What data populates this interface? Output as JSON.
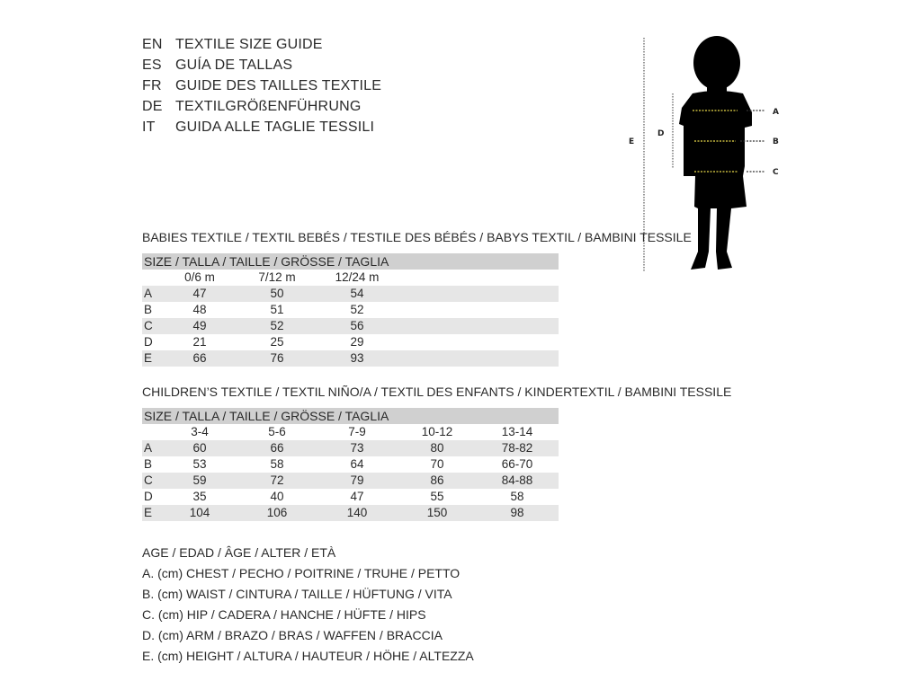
{
  "languages": [
    {
      "code": "EN",
      "title": "TEXTILE SIZE GUIDE"
    },
    {
      "code": "ES",
      "title": "GUÍA DE TALLAS"
    },
    {
      "code": "FR",
      "title": "GUIDE DES TAILLES TEXTILE"
    },
    {
      "code": "DE",
      "title": "TEXTILGRÖßENFÜHRUNG"
    },
    {
      "code": "IT",
      "title": "GUIDA ALLE TAGLIE TESSILI"
    }
  ],
  "babies": {
    "title": "BABIES TEXTILE / TEXTIL BEBÉS / TESTILE DES BÉBÉS / BABYS TEXTIL / BAMBINI TESSILE",
    "header": "SIZE / TALLA / TAILLE / GRÖSSE / TAGLIA",
    "columns": [
      "0/6 m",
      "7/12 m",
      "12/24 m"
    ],
    "rows": [
      {
        "label": "A",
        "values": [
          "47",
          "50",
          "54"
        ]
      },
      {
        "label": "B",
        "values": [
          "48",
          "51",
          "52"
        ]
      },
      {
        "label": "C",
        "values": [
          "49",
          "52",
          "56"
        ]
      },
      {
        "label": "D",
        "values": [
          "21",
          "25",
          "29"
        ]
      },
      {
        "label": "E",
        "values": [
          "66",
          "76",
          "93"
        ]
      }
    ]
  },
  "children": {
    "title": "CHILDREN’S TEXTILE / TEXTIL NIÑO/A / TEXTIL DES ENFANTS / KINDERTEXTIL / BAMBINI TESSILE",
    "header": "SIZE / TALLA / TAILLE / GRÖSSE / TAGLIA",
    "columns": [
      "3-4",
      "5-6",
      "7-9",
      "10-12",
      "13-14"
    ],
    "rows": [
      {
        "label": "A",
        "values": [
          "60",
          "66",
          "73",
          "80",
          "78-82"
        ]
      },
      {
        "label": "B",
        "values": [
          "53",
          "58",
          "64",
          "70",
          "66-70"
        ]
      },
      {
        "label": "C",
        "values": [
          "59",
          "72",
          "79",
          "86",
          "84-88"
        ]
      },
      {
        "label": "D",
        "values": [
          "35",
          "40",
          "47",
          "55",
          "58"
        ]
      },
      {
        "label": "E",
        "values": [
          "104",
          "106",
          "140",
          "150",
          "98"
        ]
      }
    ]
  },
  "legend": [
    "AGE / EDAD / ÂGE / ALTER / ETÀ",
    "A. (cm) CHEST / PECHO / POITRINE / TRUHE / PETTO",
    "B. (cm) WAIST / CINTURA / TAILLE / HÜFTUNG / VITA",
    "C. (cm) HIP / CADERA / HANCHE / HÜFTE / HIPS",
    "D. (cm) ARM / BRAZO / BRAS / WAFFEN / BRACCIA",
    "E. (cm) HEIGHT / ALTURA / HAUTEUR / HÖHE / ALTEZZA"
  ],
  "figure": {
    "labels": {
      "a": "A",
      "b": "B",
      "c": "C",
      "d": "D",
      "e": "E"
    },
    "measure_line_color": "#e8d84a"
  }
}
